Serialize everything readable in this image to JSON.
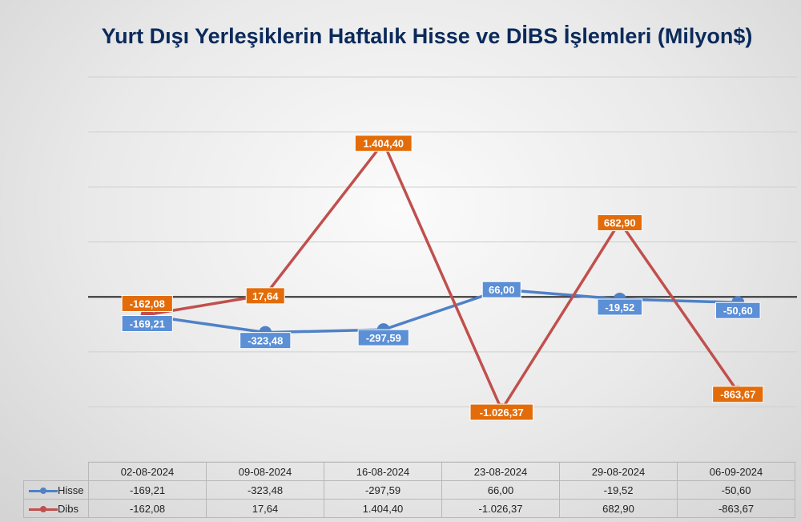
{
  "chart_data": {
    "type": "line",
    "title": "Yurt Dışı Yerleşiklerin Haftalık Hisse ve DİBS İşlemleri (Milyon$)",
    "categories": [
      "02-08-2024",
      "09-08-2024",
      "16-08-2024",
      "23-08-2024",
      "29-08-2024",
      "06-09-2024"
    ],
    "series": [
      {
        "name": "Hisse",
        "color": "#4f81c7",
        "values": [
          -169.21,
          -323.48,
          -297.59,
          66.0,
          -19.52,
          -50.6
        ],
        "labels": [
          "-169,21",
          "-323,48",
          "-297,59",
          "66,00",
          "-19,52",
          "-50,60"
        ]
      },
      {
        "name": "Dibs",
        "color": "#c0504d",
        "values": [
          -162.08,
          17.64,
          1404.4,
          -1026.37,
          682.9,
          -863.67
        ],
        "labels": [
          "-162,08",
          "17,64",
          "1.404,40",
          "-1.026,37",
          "682,90",
          "-863,67"
        ]
      }
    ],
    "ylim": [
      -1500,
      2000
    ],
    "grid": true,
    "legend": "data-table"
  }
}
